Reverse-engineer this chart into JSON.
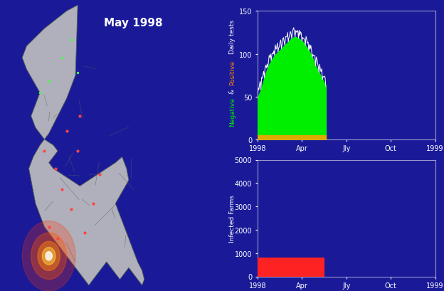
{
  "title": "May 1998",
  "title_color": "#ffffff",
  "bg_color": "#1a1a99",
  "axes_edge_color": "#9999cc",
  "text_color": "#ffffff",
  "top_chart": {
    "ylim": [
      0,
      150
    ],
    "yticks": [
      0,
      50,
      100,
      150
    ],
    "xtick_labels": [
      "1998",
      "Apr",
      "Jly",
      "Oct",
      "1999"
    ],
    "x_tick_pos": [
      0,
      13,
      26,
      39,
      52
    ],
    "total_x": 52,
    "data_end_x": 20,
    "green_x": [
      0,
      1,
      2,
      3,
      4,
      5,
      6,
      7,
      8,
      9,
      10,
      11,
      12,
      13,
      14,
      15,
      16,
      17,
      18,
      19,
      20
    ],
    "green_y": [
      48,
      58,
      72,
      84,
      92,
      98,
      102,
      106,
      110,
      114,
      118,
      120,
      118,
      115,
      110,
      104,
      96,
      86,
      78,
      70,
      62
    ],
    "orange_y": [
      5,
      5,
      5,
      5,
      5,
      5,
      5,
      5,
      5,
      5,
      5,
      5,
      5,
      5,
      5,
      5,
      5,
      5,
      5,
      5,
      5
    ],
    "green_color": "#00ee00",
    "orange_color": "#ddaa00",
    "ylabel_top": "Daily tests",
    "ylabel_mid": "Positive",
    "ylabel_amp": " & ",
    "ylabel_bot": "Negative"
  },
  "bottom_chart": {
    "ylabel": "Infected Farms",
    "ylim": [
      0,
      5000
    ],
    "yticks": [
      0,
      1000,
      2000,
      3000,
      4000,
      5000
    ],
    "xtick_labels": [
      "1998",
      "Apr",
      "Jly",
      "Oct",
      "1999"
    ],
    "x_tick_pos": [
      0,
      13,
      26,
      39,
      52
    ],
    "total_x": 52,
    "bar_value": 820,
    "bar_x_start": 0,
    "bar_x_end": 19.5,
    "bar_color": "#ff2222"
  },
  "figsize": [
    6.24,
    4.1
  ],
  "dpi": 100
}
